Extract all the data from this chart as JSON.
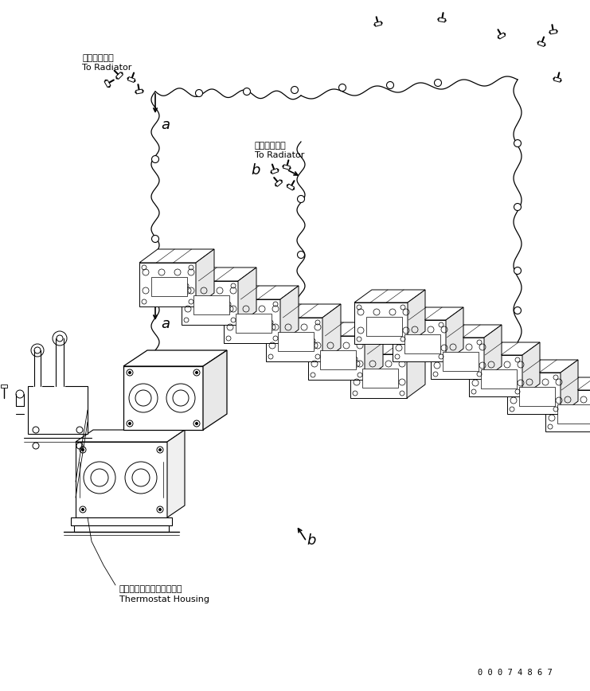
{
  "figsize": [
    7.41,
    8.68
  ],
  "dpi": 100,
  "bg_color": "#ffffff",
  "line_color": "#000000",
  "label_a1": "a",
  "label_b1": "b",
  "label_a2": "a",
  "label_b2": "b",
  "text_radiator_jp1": "ラジエータへ",
  "text_radiator_en1": "To Radiator",
  "text_radiator_jp2": "ラジエータへ",
  "text_radiator_en2": "To Radiator",
  "text_thermostat_jp": "サーモスタットハウジング",
  "text_thermostat_en": "Thermostat Housing",
  "part_number": "0 0 0 7 4 8 6 7"
}
